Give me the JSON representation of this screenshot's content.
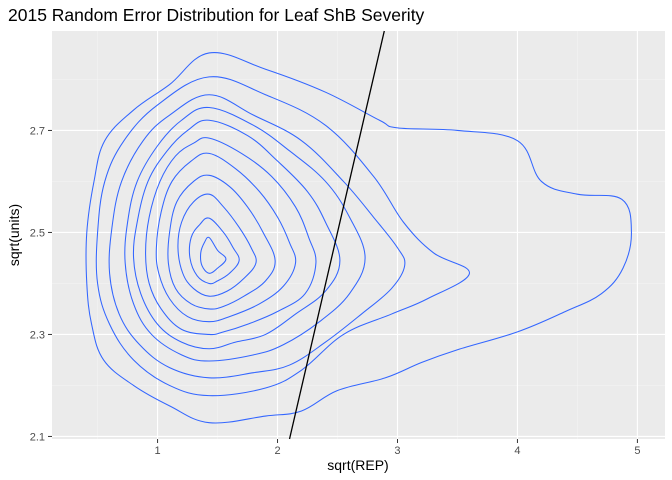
{
  "chart_data": {
    "type": "contour",
    "title": "2015 Random Error Distribution for Leaf ShB Severity",
    "xlabel": "sqrt(REP)",
    "ylabel": "sqrt(units)",
    "xlim": [
      0.12,
      5.23
    ],
    "ylim": [
      2.095,
      2.895
    ],
    "xticks": [
      1,
      2,
      3,
      4,
      5
    ],
    "yticks": [
      2.1,
      2.3,
      2.5,
      2.7
    ],
    "ytick_labels": [
      "2.1",
      "2.3",
      "2.5",
      "2.7"
    ],
    "grid": true,
    "panel_background": "#ebebeb",
    "contour_color": "#3366ff",
    "line_color": "#000000",
    "line": [
      [
        2.1,
        2.095
      ],
      [
        2.89,
        2.895
      ]
    ],
    "contours": [
      [
        [
          1.43,
          2.852
        ],
        [
          1.9,
          2.82
        ],
        [
          2.4,
          2.775
        ],
        [
          2.85,
          2.72
        ],
        [
          3.0,
          2.705
        ],
        [
          3.5,
          2.7
        ],
        [
          4.0,
          2.68
        ],
        [
          4.2,
          2.6
        ],
        [
          4.5,
          2.575
        ],
        [
          4.87,
          2.565
        ],
        [
          4.95,
          2.5
        ],
        [
          4.88,
          2.43
        ],
        [
          4.7,
          2.38
        ],
        [
          4.4,
          2.345
        ],
        [
          4.0,
          2.305
        ],
        [
          3.5,
          2.27
        ],
        [
          3.2,
          2.245
        ],
        [
          2.9,
          2.215
        ],
        [
          2.5,
          2.19
        ],
        [
          2.2,
          2.15
        ],
        [
          1.9,
          2.14
        ],
        [
          1.43,
          2.127
        ],
        [
          1.1,
          2.16
        ],
        [
          0.8,
          2.2
        ],
        [
          0.55,
          2.25
        ],
        [
          0.45,
          2.32
        ],
        [
          0.41,
          2.4
        ],
        [
          0.41,
          2.5
        ],
        [
          0.47,
          2.6
        ],
        [
          0.56,
          2.68
        ],
        [
          0.8,
          2.74
        ],
        [
          1.1,
          2.79
        ]
      ],
      [
        [
          1.43,
          2.805
        ],
        [
          1.9,
          2.77
        ],
        [
          2.4,
          2.71
        ],
        [
          2.8,
          2.61
        ],
        [
          3.05,
          2.52
        ],
        [
          3.3,
          2.46
        ],
        [
          3.6,
          2.42
        ],
        [
          3.25,
          2.37
        ],
        [
          2.95,
          2.34
        ],
        [
          2.55,
          2.3
        ],
        [
          2.2,
          2.23
        ],
        [
          1.9,
          2.195
        ],
        [
          1.43,
          2.18
        ],
        [
          1.1,
          2.2
        ],
        [
          0.8,
          2.25
        ],
        [
          0.6,
          2.32
        ],
        [
          0.5,
          2.4
        ],
        [
          0.5,
          2.5
        ],
        [
          0.56,
          2.6
        ],
        [
          0.72,
          2.68
        ],
        [
          1.0,
          2.75
        ]
      ],
      [
        [
          1.43,
          2.77
        ],
        [
          1.8,
          2.73
        ],
        [
          2.2,
          2.68
        ],
        [
          2.55,
          2.6
        ],
        [
          2.8,
          2.53
        ],
        [
          3.0,
          2.47
        ],
        [
          3.06,
          2.435
        ],
        [
          2.95,
          2.39
        ],
        [
          2.7,
          2.34
        ],
        [
          2.4,
          2.285
        ],
        [
          2.1,
          2.24
        ],
        [
          1.8,
          2.225
        ],
        [
          1.43,
          2.215
        ],
        [
          1.1,
          2.235
        ],
        [
          0.85,
          2.28
        ],
        [
          0.68,
          2.34
        ],
        [
          0.6,
          2.42
        ],
        [
          0.62,
          2.51
        ],
        [
          0.7,
          2.6
        ],
        [
          0.88,
          2.68
        ],
        [
          1.1,
          2.73
        ]
      ],
      [
        [
          1.43,
          2.745
        ],
        [
          1.8,
          2.71
        ],
        [
          2.1,
          2.66
        ],
        [
          2.4,
          2.6
        ],
        [
          2.6,
          2.53
        ],
        [
          2.73,
          2.45
        ],
        [
          2.6,
          2.38
        ],
        [
          2.35,
          2.325
        ],
        [
          2.05,
          2.28
        ],
        [
          1.8,
          2.26
        ],
        [
          1.43,
          2.248
        ],
        [
          1.2,
          2.26
        ],
        [
          0.95,
          2.3
        ],
        [
          0.8,
          2.36
        ],
        [
          0.73,
          2.44
        ],
        [
          0.75,
          2.52
        ],
        [
          0.83,
          2.6
        ],
        [
          1.0,
          2.67
        ],
        [
          1.2,
          2.72
        ]
      ],
      [
        [
          1.43,
          2.72
        ],
        [
          1.75,
          2.69
        ],
        [
          2.0,
          2.64
        ],
        [
          2.25,
          2.58
        ],
        [
          2.4,
          2.52
        ],
        [
          2.52,
          2.445
        ],
        [
          2.4,
          2.385
        ],
        [
          2.15,
          2.34
        ],
        [
          1.9,
          2.3
        ],
        [
          1.65,
          2.285
        ],
        [
          1.43,
          2.272
        ],
        [
          1.2,
          2.285
        ],
        [
          1.0,
          2.32
        ],
        [
          0.86,
          2.38
        ],
        [
          0.8,
          2.45
        ],
        [
          0.83,
          2.52
        ],
        [
          0.92,
          2.6
        ],
        [
          1.08,
          2.66
        ],
        [
          1.25,
          2.7
        ]
      ],
      [
        [
          1.43,
          2.685
        ],
        [
          1.7,
          2.655
        ],
        [
          1.95,
          2.61
        ],
        [
          2.15,
          2.55
        ],
        [
          2.26,
          2.49
        ],
        [
          2.32,
          2.44
        ],
        [
          2.23,
          2.38
        ],
        [
          2.0,
          2.345
        ],
        [
          1.75,
          2.32
        ],
        [
          1.55,
          2.305
        ],
        [
          1.43,
          2.3
        ],
        [
          1.2,
          2.31
        ],
        [
          1.03,
          2.35
        ],
        [
          0.93,
          2.4
        ],
        [
          0.9,
          2.46
        ],
        [
          0.93,
          2.53
        ],
        [
          1.02,
          2.6
        ],
        [
          1.15,
          2.65
        ],
        [
          1.3,
          2.675
        ]
      ],
      [
        [
          1.43,
          2.655
        ],
        [
          1.65,
          2.625
        ],
        [
          1.85,
          2.58
        ],
        [
          2.0,
          2.53
        ],
        [
          2.1,
          2.48
        ],
        [
          2.15,
          2.44
        ],
        [
          2.05,
          2.395
        ],
        [
          1.85,
          2.36
        ],
        [
          1.6,
          2.335
        ],
        [
          1.43,
          2.325
        ],
        [
          1.25,
          2.335
        ],
        [
          1.1,
          2.37
        ],
        [
          1.01,
          2.42
        ],
        [
          0.99,
          2.47
        ],
        [
          1.03,
          2.54
        ],
        [
          1.12,
          2.6
        ],
        [
          1.28,
          2.64
        ]
      ],
      [
        [
          1.43,
          2.612
        ],
        [
          1.6,
          2.59
        ],
        [
          1.75,
          2.55
        ],
        [
          1.88,
          2.5
        ],
        [
          1.98,
          2.445
        ],
        [
          1.9,
          2.405
        ],
        [
          1.72,
          2.375
        ],
        [
          1.55,
          2.355
        ],
        [
          1.43,
          2.35
        ],
        [
          1.28,
          2.36
        ],
        [
          1.15,
          2.39
        ],
        [
          1.09,
          2.44
        ],
        [
          1.1,
          2.5
        ],
        [
          1.16,
          2.56
        ],
        [
          1.3,
          2.6
        ]
      ],
      [
        [
          1.43,
          2.575
        ],
        [
          1.55,
          2.55
        ],
        [
          1.68,
          2.51
        ],
        [
          1.78,
          2.47
        ],
        [
          1.82,
          2.44
        ],
        [
          1.72,
          2.41
        ],
        [
          1.58,
          2.385
        ],
        [
          1.43,
          2.375
        ],
        [
          1.3,
          2.39
        ],
        [
          1.21,
          2.42
        ],
        [
          1.17,
          2.47
        ],
        [
          1.2,
          2.52
        ],
        [
          1.3,
          2.56
        ]
      ],
      [
        [
          1.43,
          2.528
        ],
        [
          1.55,
          2.5
        ],
        [
          1.63,
          2.47
        ],
        [
          1.68,
          2.445
        ],
        [
          1.6,
          2.42
        ],
        [
          1.5,
          2.405
        ],
        [
          1.43,
          2.4
        ],
        [
          1.33,
          2.415
        ],
        [
          1.27,
          2.45
        ],
        [
          1.28,
          2.49
        ],
        [
          1.35,
          2.515
        ]
      ],
      [
        [
          1.43,
          2.49
        ],
        [
          1.5,
          2.465
        ],
        [
          1.57,
          2.448
        ],
        [
          1.5,
          2.43
        ],
        [
          1.43,
          2.42
        ],
        [
          1.37,
          2.435
        ],
        [
          1.36,
          2.46
        ],
        [
          1.39,
          2.48
        ]
      ]
    ]
  }
}
